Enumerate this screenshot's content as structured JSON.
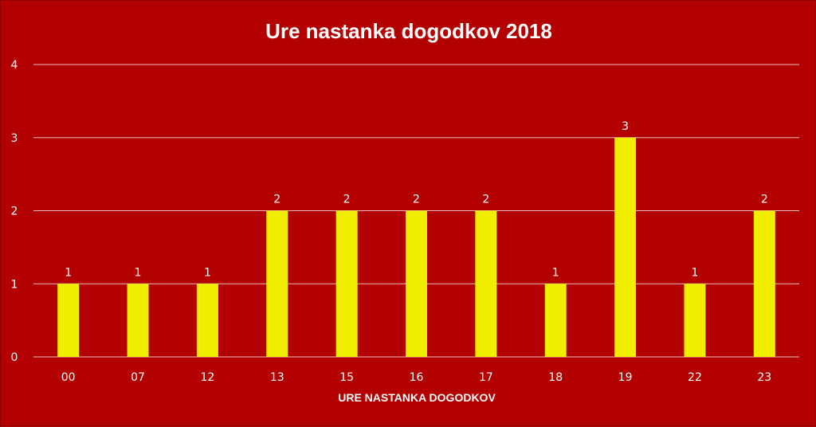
{
  "chart_data": {
    "type": "bar",
    "title": "Ure nastanka dogodkov 2018",
    "xlabel": "URE NASTANKA DOGODKOV",
    "ylabel": "",
    "categories": [
      "00",
      "07",
      "12",
      "13",
      "15",
      "16",
      "17",
      "18",
      "19",
      "22",
      "23"
    ],
    "values": [
      1,
      1,
      1,
      2,
      2,
      2,
      2,
      1,
      3,
      1,
      2
    ],
    "ylim": [
      0,
      4
    ],
    "yticks": [
      "0",
      "1",
      "2",
      "3",
      "4"
    ],
    "grid": true,
    "legend": "none",
    "colors": {
      "background": "#b30000",
      "bar": "#f2ee00",
      "grid": "#e8c0c0",
      "text": "#ffffff"
    }
  }
}
